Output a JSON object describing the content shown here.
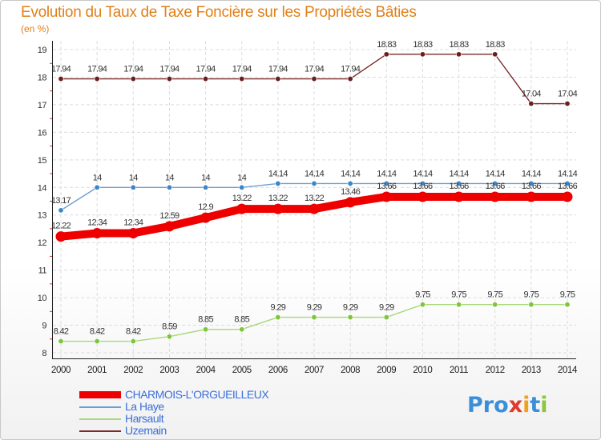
{
  "title": "Evolution du Taux de Taxe Foncière sur les Propriétés Bâties",
  "unit": "(en %)",
  "logo": {
    "letters": [
      "P",
      "r",
      "o",
      "x",
      "i",
      "t",
      "i"
    ],
    "colors": [
      "#3b8fd8",
      "#3b8fd8",
      "#3b8fd8",
      "#e03a2a",
      "#f0a020",
      "#3b8fd8",
      "#8cc63f"
    ]
  },
  "chart_data": {
    "type": "line",
    "title": "Evolution du Taux de Taxe Foncière sur les Propriétés Bâties",
    "ylabel": "(en %)",
    "xlabel": "",
    "categories": [
      "2000",
      "2001",
      "2002",
      "2003",
      "2004",
      "2005",
      "2006",
      "2007",
      "2008",
      "2009",
      "2010",
      "2011",
      "2012",
      "2013",
      "2014"
    ],
    "ylim": [
      8,
      19
    ],
    "yticks": [
      "8",
      "9",
      "10",
      "11",
      "12",
      "13",
      "14",
      "15",
      "16",
      "17",
      "18",
      "19"
    ],
    "series": [
      {
        "name": "CHARMOIS-L'ORGUEILLEUX",
        "color": "#ee0000",
        "thick": true,
        "values": [
          12.22,
          12.34,
          12.34,
          12.59,
          12.9,
          13.22,
          13.22,
          13.22,
          13.46,
          13.66,
          13.66,
          13.66,
          13.66,
          13.66,
          13.66
        ],
        "labels": [
          "12.22",
          "12.34",
          "12.34",
          "12.59",
          "12.9",
          "13.22",
          "13.22",
          "13.22",
          "13.46",
          "13.66",
          "13.66",
          "13.66",
          "13.66",
          "13.66",
          "13.66"
        ]
      },
      {
        "name": "La Haye",
        "color": "#6b9fd4",
        "dot": "#3b86c8",
        "values": [
          13.17,
          14,
          14,
          14,
          14,
          14,
          14.14,
          14.14,
          14.14,
          14.14,
          14.14,
          14.14,
          14.14,
          14.14,
          14.14
        ],
        "labels": [
          "13.17",
          "14",
          "14",
          "14",
          "14",
          "14",
          "14.14",
          "14.14",
          "14.14",
          "14.14",
          "14.14",
          "14.14",
          "14.14",
          "14.14",
          "14.14"
        ]
      },
      {
        "name": "Harsault",
        "color": "#a8d87a",
        "dot": "#7cc63a",
        "values": [
          8.42,
          8.42,
          8.42,
          8.59,
          8.85,
          8.85,
          9.29,
          9.29,
          9.29,
          9.29,
          9.75,
          9.75,
          9.75,
          9.75,
          9.75
        ],
        "labels": [
          "8.42",
          "8.42",
          "8.42",
          "8.59",
          "8.85",
          "8.85",
          "9.29",
          "9.29",
          "9.29",
          "9.29",
          "9.75",
          "9.75",
          "9.75",
          "9.75",
          "9.75"
        ]
      },
      {
        "name": "Uzemain",
        "color": "#7a2a2a",
        "dot": "#6a1e1e",
        "values": [
          17.94,
          17.94,
          17.94,
          17.94,
          17.94,
          17.94,
          17.94,
          17.94,
          17.94,
          18.83,
          18.83,
          18.83,
          18.83,
          17.04,
          17.04
        ],
        "labels": [
          "17.94",
          "17.94",
          "17.94",
          "17.94",
          "17.94",
          "17.94",
          "17.94",
          "17.94",
          "17.94",
          "18.83",
          "18.83",
          "18.83",
          "18.83",
          "17.04",
          "17.04"
        ]
      }
    ],
    "legend": [
      "CHARMOIS-L'ORGUEILLEUX",
      "La Haye",
      "Harsault",
      "Uzemain"
    ],
    "grid": true
  }
}
